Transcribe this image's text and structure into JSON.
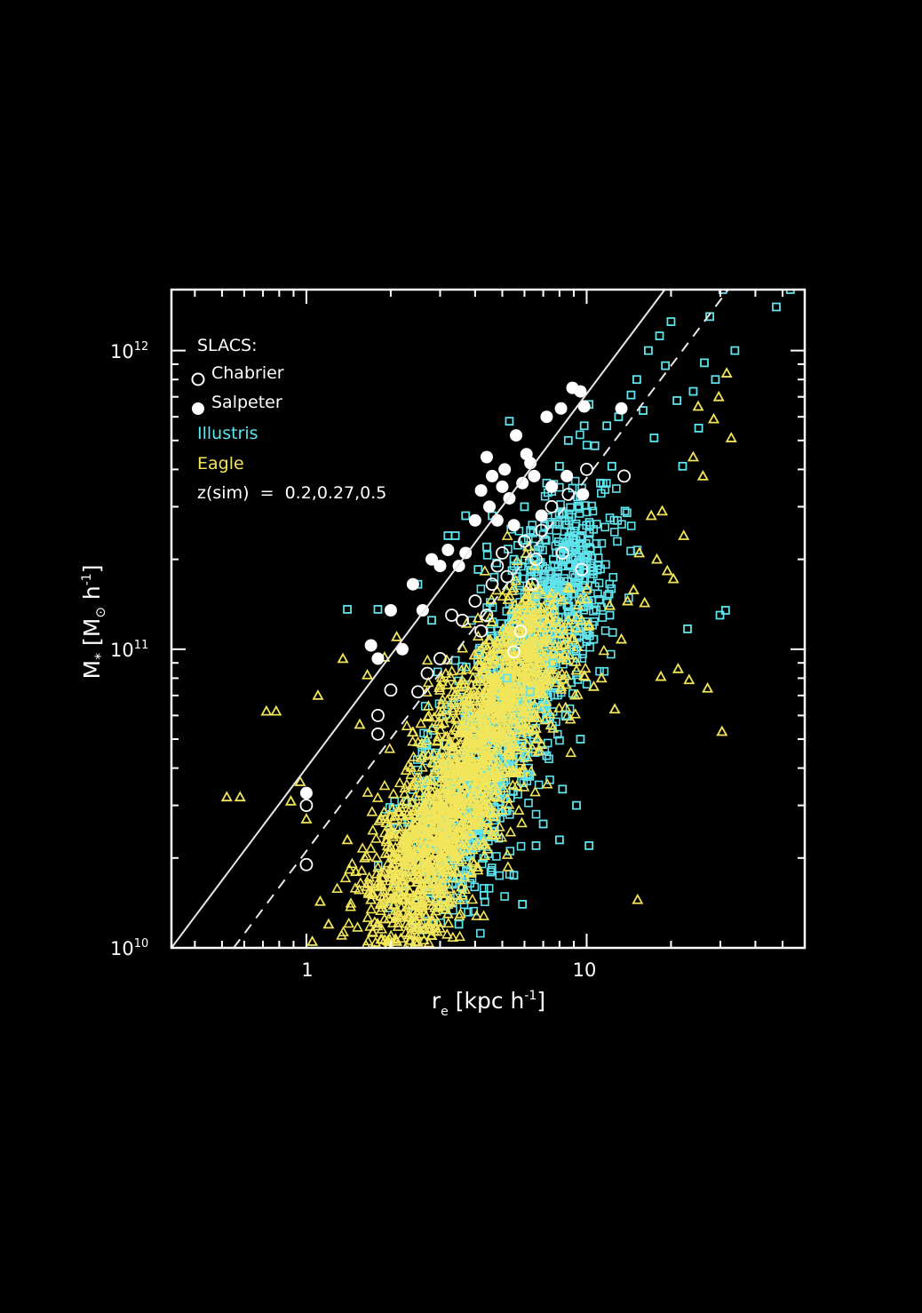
{
  "chart_data": {
    "type": "scatter",
    "xlabel": "r_e [kpc h^-1]",
    "ylabel": "M_* [M_sun h^-1]",
    "x_scale": "log",
    "y_scale": "log",
    "xlim": [
      0.33,
      60
    ],
    "ylim": [
      10000000000.0,
      1600000000000.0
    ],
    "x_ticks": [
      {
        "value": 1,
        "label": "1"
      },
      {
        "value": 10,
        "label": "10"
      }
    ],
    "y_ticks": [
      {
        "value": 10000000000.0,
        "base": "10",
        "exp": "10"
      },
      {
        "value": 100000000000.0,
        "base": "10",
        "exp": "11"
      },
      {
        "value": 1000000000000.0,
        "base": "10",
        "exp": "12"
      }
    ],
    "legend": {
      "position": "top-left",
      "heading": "SLACS:",
      "chabrier_label": "Chabrier",
      "salpeter_label": "Salpeter",
      "illustris_label": "Illustris",
      "eagle_label": "Eagle",
      "sim_note": "z(sim)  =  0.2,0.27,0.5"
    },
    "lines": [
      {
        "style": "solid",
        "points": [
          [
            0.33,
            10000000000.0
          ],
          [
            19,
            1600000000000.0
          ]
        ]
      },
      {
        "style": "dashed",
        "points": [
          [
            0.55,
            10000000000.0
          ],
          [
            32,
            1600000000000.0
          ]
        ]
      }
    ],
    "series": [
      {
        "name": "Chabrier",
        "marker": "open-circle",
        "color": "#ffffff",
        "points": [
          [
            1.0,
            19000000000.0
          ],
          [
            1.0,
            30000000000.0
          ],
          [
            1.8,
            52000000000.0
          ],
          [
            1.8,
            60000000000.0
          ],
          [
            2.0,
            73000000000.0
          ],
          [
            2.5,
            72000000000.0
          ],
          [
            2.7,
            83000000000.0
          ],
          [
            3.0,
            93000000000.0
          ],
          [
            3.3,
            130000000000.0
          ],
          [
            3.6,
            125000000000.0
          ],
          [
            4.0,
            145000000000.0
          ],
          [
            4.2,
            115000000000.0
          ],
          [
            4.4,
            130000000000.0
          ],
          [
            4.6,
            165000000000.0
          ],
          [
            4.8,
            190000000000.0
          ],
          [
            5.0,
            210000000000.0
          ],
          [
            5.2,
            175000000000.0
          ],
          [
            5.5,
            98000000000.0
          ],
          [
            5.8,
            115000000000.0
          ],
          [
            6.0,
            230000000000.0
          ],
          [
            6.4,
            165000000000.0
          ],
          [
            6.6,
            200000000000.0
          ],
          [
            6.9,
            250000000000.0
          ],
          [
            7.5,
            300000000000.0
          ],
          [
            8.2,
            210000000000.0
          ],
          [
            8.6,
            330000000000.0
          ],
          [
            9.6,
            185000000000.0
          ],
          [
            10.0,
            400000000000.0
          ],
          [
            13.6,
            380000000000.0
          ]
        ]
      },
      {
        "name": "Salpeter",
        "marker": "filled-circle",
        "color": "#ffffff",
        "points": [
          [
            1.0,
            33000000000.0
          ],
          [
            1.7,
            103000000000.0
          ],
          [
            1.8,
            93000000000.0
          ],
          [
            2.0,
            135000000000.0
          ],
          [
            2.2,
            100000000000.0
          ],
          [
            2.4,
            165000000000.0
          ],
          [
            2.6,
            135000000000.0
          ],
          [
            2.8,
            200000000000.0
          ],
          [
            3.0,
            190000000000.0
          ],
          [
            3.2,
            215000000000.0
          ],
          [
            3.5,
            190000000000.0
          ],
          [
            3.7,
            210000000000.0
          ],
          [
            4.0,
            270000000000.0
          ],
          [
            4.2,
            340000000000.0
          ],
          [
            4.4,
            440000000000.0
          ],
          [
            4.5,
            300000000000.0
          ],
          [
            4.6,
            380000000000.0
          ],
          [
            4.8,
            270000000000.0
          ],
          [
            5.0,
            350000000000.0
          ],
          [
            5.1,
            400000000000.0
          ],
          [
            5.3,
            320000000000.0
          ],
          [
            5.5,
            260000000000.0
          ],
          [
            5.6,
            520000000000.0
          ],
          [
            5.9,
            360000000000.0
          ],
          [
            6.1,
            450000000000.0
          ],
          [
            6.3,
            420000000000.0
          ],
          [
            6.5,
            380000000000.0
          ],
          [
            6.9,
            280000000000.0
          ],
          [
            7.2,
            600000000000.0
          ],
          [
            7.5,
            350000000000.0
          ],
          [
            8.1,
            640000000000.0
          ],
          [
            8.5,
            380000000000.0
          ],
          [
            8.9,
            750000000000.0
          ],
          [
            9.5,
            730000000000.0
          ],
          [
            9.8,
            650000000000.0
          ],
          [
            9.7,
            330000000000.0
          ],
          [
            13.3,
            640000000000.0
          ]
        ]
      },
      {
        "name": "Illustris",
        "marker": "open-square",
        "color": "#5fe3ec",
        "points": [
          [
            1.4,
            136000000000.0
          ],
          [
            1.8,
            136000000000.0
          ],
          [
            2.5,
            165000000000.0
          ],
          [
            2.8,
            125000000000.0
          ],
          [
            3.2,
            240000000000.0
          ],
          [
            3.4,
            240000000000.0
          ],
          [
            3.7,
            280000000000.0
          ],
          [
            4.1,
            185000000000.0
          ],
          [
            4.4,
            220000000000.0
          ],
          [
            4.6,
            280000000000.0
          ],
          [
            5.3,
            580000000000.0
          ],
          [
            5.5,
            200000000000.0
          ],
          [
            6.0,
            300000000000.0
          ],
          [
            6.3,
            250000000000.0
          ],
          [
            6.6,
            150000000000.0
          ],
          [
            6.8,
            220000000000.0
          ],
          [
            7.2,
            360000000000.0
          ],
          [
            7.6,
            200000000000.0
          ],
          [
            8.0,
            410000000000.0
          ],
          [
            8.2,
            190000000000.0
          ],
          [
            8.6,
            500000000000.0
          ],
          [
            9.0,
            240000000000.0
          ],
          [
            9.4,
            300000000000.0
          ],
          [
            9.8,
            560000000000.0
          ],
          [
            10.2,
            660000000000.0
          ],
          [
            10.7,
            480000000000.0
          ],
          [
            11.2,
            360000000000.0
          ],
          [
            11.8,
            560000000000.0
          ],
          [
            12.3,
            410000000000.0
          ],
          [
            13.0,
            600000000000.0
          ],
          [
            13.7,
            290000000000.0
          ],
          [
            14.4,
            710000000000.0
          ],
          [
            15.1,
            800000000000.0
          ],
          [
            15.9,
            630000000000.0
          ],
          [
            16.6,
            1000000000000.0
          ],
          [
            17.4,
            510000000000.0
          ],
          [
            18.2,
            1120000000000.0
          ],
          [
            19.1,
            890000000000.0
          ],
          [
            20.0,
            1250000000000.0
          ],
          [
            21.0,
            680000000000.0
          ],
          [
            22.0,
            410000000000.0
          ],
          [
            22.9,
            117000000000.0
          ],
          [
            24.0,
            730000000000.0
          ],
          [
            25.1,
            550000000000.0
          ],
          [
            26.3,
            910000000000.0
          ],
          [
            27.5,
            1300000000000.0
          ],
          [
            28.8,
            800000000000.0
          ],
          [
            29.9,
            130000000000.0
          ],
          [
            30.6,
            1600000000000.0
          ],
          [
            31.3,
            135000000000.0
          ],
          [
            33.8,
            1000000000000.0
          ],
          [
            47.5,
            1400000000000.0
          ],
          [
            53.3,
            1600000000000.0
          ],
          [
            5.9,
            14000000000.0
          ],
          [
            5.5,
            17500000000.0
          ],
          [
            3.5,
            12000000000.0
          ],
          [
            4.3,
            15000000000.0
          ],
          [
            6.6,
            22000000000.0
          ],
          [
            7.0,
            26000000000.0
          ],
          [
            8.0,
            23000000000.0
          ],
          [
            9.2,
            30000000000.0
          ],
          [
            10.2,
            22000000000.0
          ],
          [
            5.2,
            80000000000.0
          ],
          [
            7.6,
            90000000000.0
          ],
          [
            9.0,
            100000000000.0
          ],
          [
            6.3,
            72000000000.0
          ],
          [
            8.4,
            60000000000.0
          ],
          [
            9.5,
            50000000000.0
          ],
          [
            10.6,
            108000000000.0
          ],
          [
            12.1,
            130000000000.0
          ],
          [
            7.2,
            44000000000.0
          ],
          [
            8.2,
            34000000000.0
          ],
          [
            6.2,
            38000000000.0
          ]
        ]
      },
      {
        "name": "Eagle",
        "marker": "open-triangle",
        "color": "#f2e55a",
        "points": [
          [
            0.52,
            32000000000.0
          ],
          [
            0.58,
            32000000000.0
          ],
          [
            0.72,
            62000000000.0
          ],
          [
            0.78,
            62000000000.0
          ],
          [
            0.88,
            31000000000.0
          ],
          [
            0.95,
            36000000000.0
          ],
          [
            1.0,
            27000000000.0
          ],
          [
            1.05,
            10500000000.0
          ],
          [
            1.1,
            70000000000.0
          ],
          [
            1.12,
            14300000000.0
          ],
          [
            1.2,
            12000000000.0
          ],
          [
            1.35,
            93000000000.0
          ],
          [
            1.55,
            56000000000.0
          ],
          [
            1.65,
            82000000000.0
          ],
          [
            1.9,
            94000000000.0
          ],
          [
            2.1,
            110000000000.0
          ],
          [
            1.4,
            23000000000.0
          ],
          [
            1.5,
            18000000000.0
          ],
          [
            1.7,
            14500000000.0
          ],
          [
            1.9,
            12500000000.0
          ],
          [
            2.1,
            10500000000.0
          ],
          [
            2.4,
            10000000000.0
          ],
          [
            2.8,
            11000000000.0
          ],
          [
            3.2,
            13000000000.0
          ],
          [
            3.6,
            15000000000.0
          ],
          [
            7.7,
            103000000000.0
          ],
          [
            8.3,
            112000000000.0
          ],
          [
            8.6,
            125000000000.0
          ],
          [
            9.2,
            85000000000.0
          ],
          [
            9.5,
            147000000000.0
          ],
          [
            10.2,
            121000000000.0
          ],
          [
            10.6,
            75000000000.0
          ],
          [
            11.3,
            80000000000.0
          ],
          [
            12.1,
            140000000000.0
          ],
          [
            12.6,
            63000000000.0
          ],
          [
            13.3,
            108000000000.0
          ],
          [
            14.0,
            145000000000.0
          ],
          [
            14.7,
            158000000000.0
          ],
          [
            15.4,
            210000000000.0
          ],
          [
            16.1,
            143000000000.0
          ],
          [
            17.0,
            280000000000.0
          ],
          [
            17.8,
            200000000000.0
          ],
          [
            18.6,
            290000000000.0
          ],
          [
            19.4,
            183000000000.0
          ],
          [
            20.4,
            172000000000.0
          ],
          [
            21.2,
            86000000000.0
          ],
          [
            22.2,
            240000000000.0
          ],
          [
            23.2,
            79000000000.0
          ],
          [
            24.0,
            440000000000.0
          ],
          [
            25.0,
            650000000000.0
          ],
          [
            26.0,
            380000000000.0
          ],
          [
            27.0,
            74000000000.0
          ],
          [
            28.4,
            590000000000.0
          ],
          [
            29.6,
            700000000000.0
          ],
          [
            30.4,
            53000000000.0
          ],
          [
            31.6,
            840000000000.0
          ],
          [
            32.8,
            510000000000.0
          ],
          [
            15.2,
            14500000000.0
          ],
          [
            18.4,
            81000000000.0
          ],
          [
            9.6,
            125000000000.0
          ],
          [
            8.7,
            160000000000.0
          ],
          [
            7.6,
            135000000000.0
          ]
        ]
      }
    ]
  }
}
